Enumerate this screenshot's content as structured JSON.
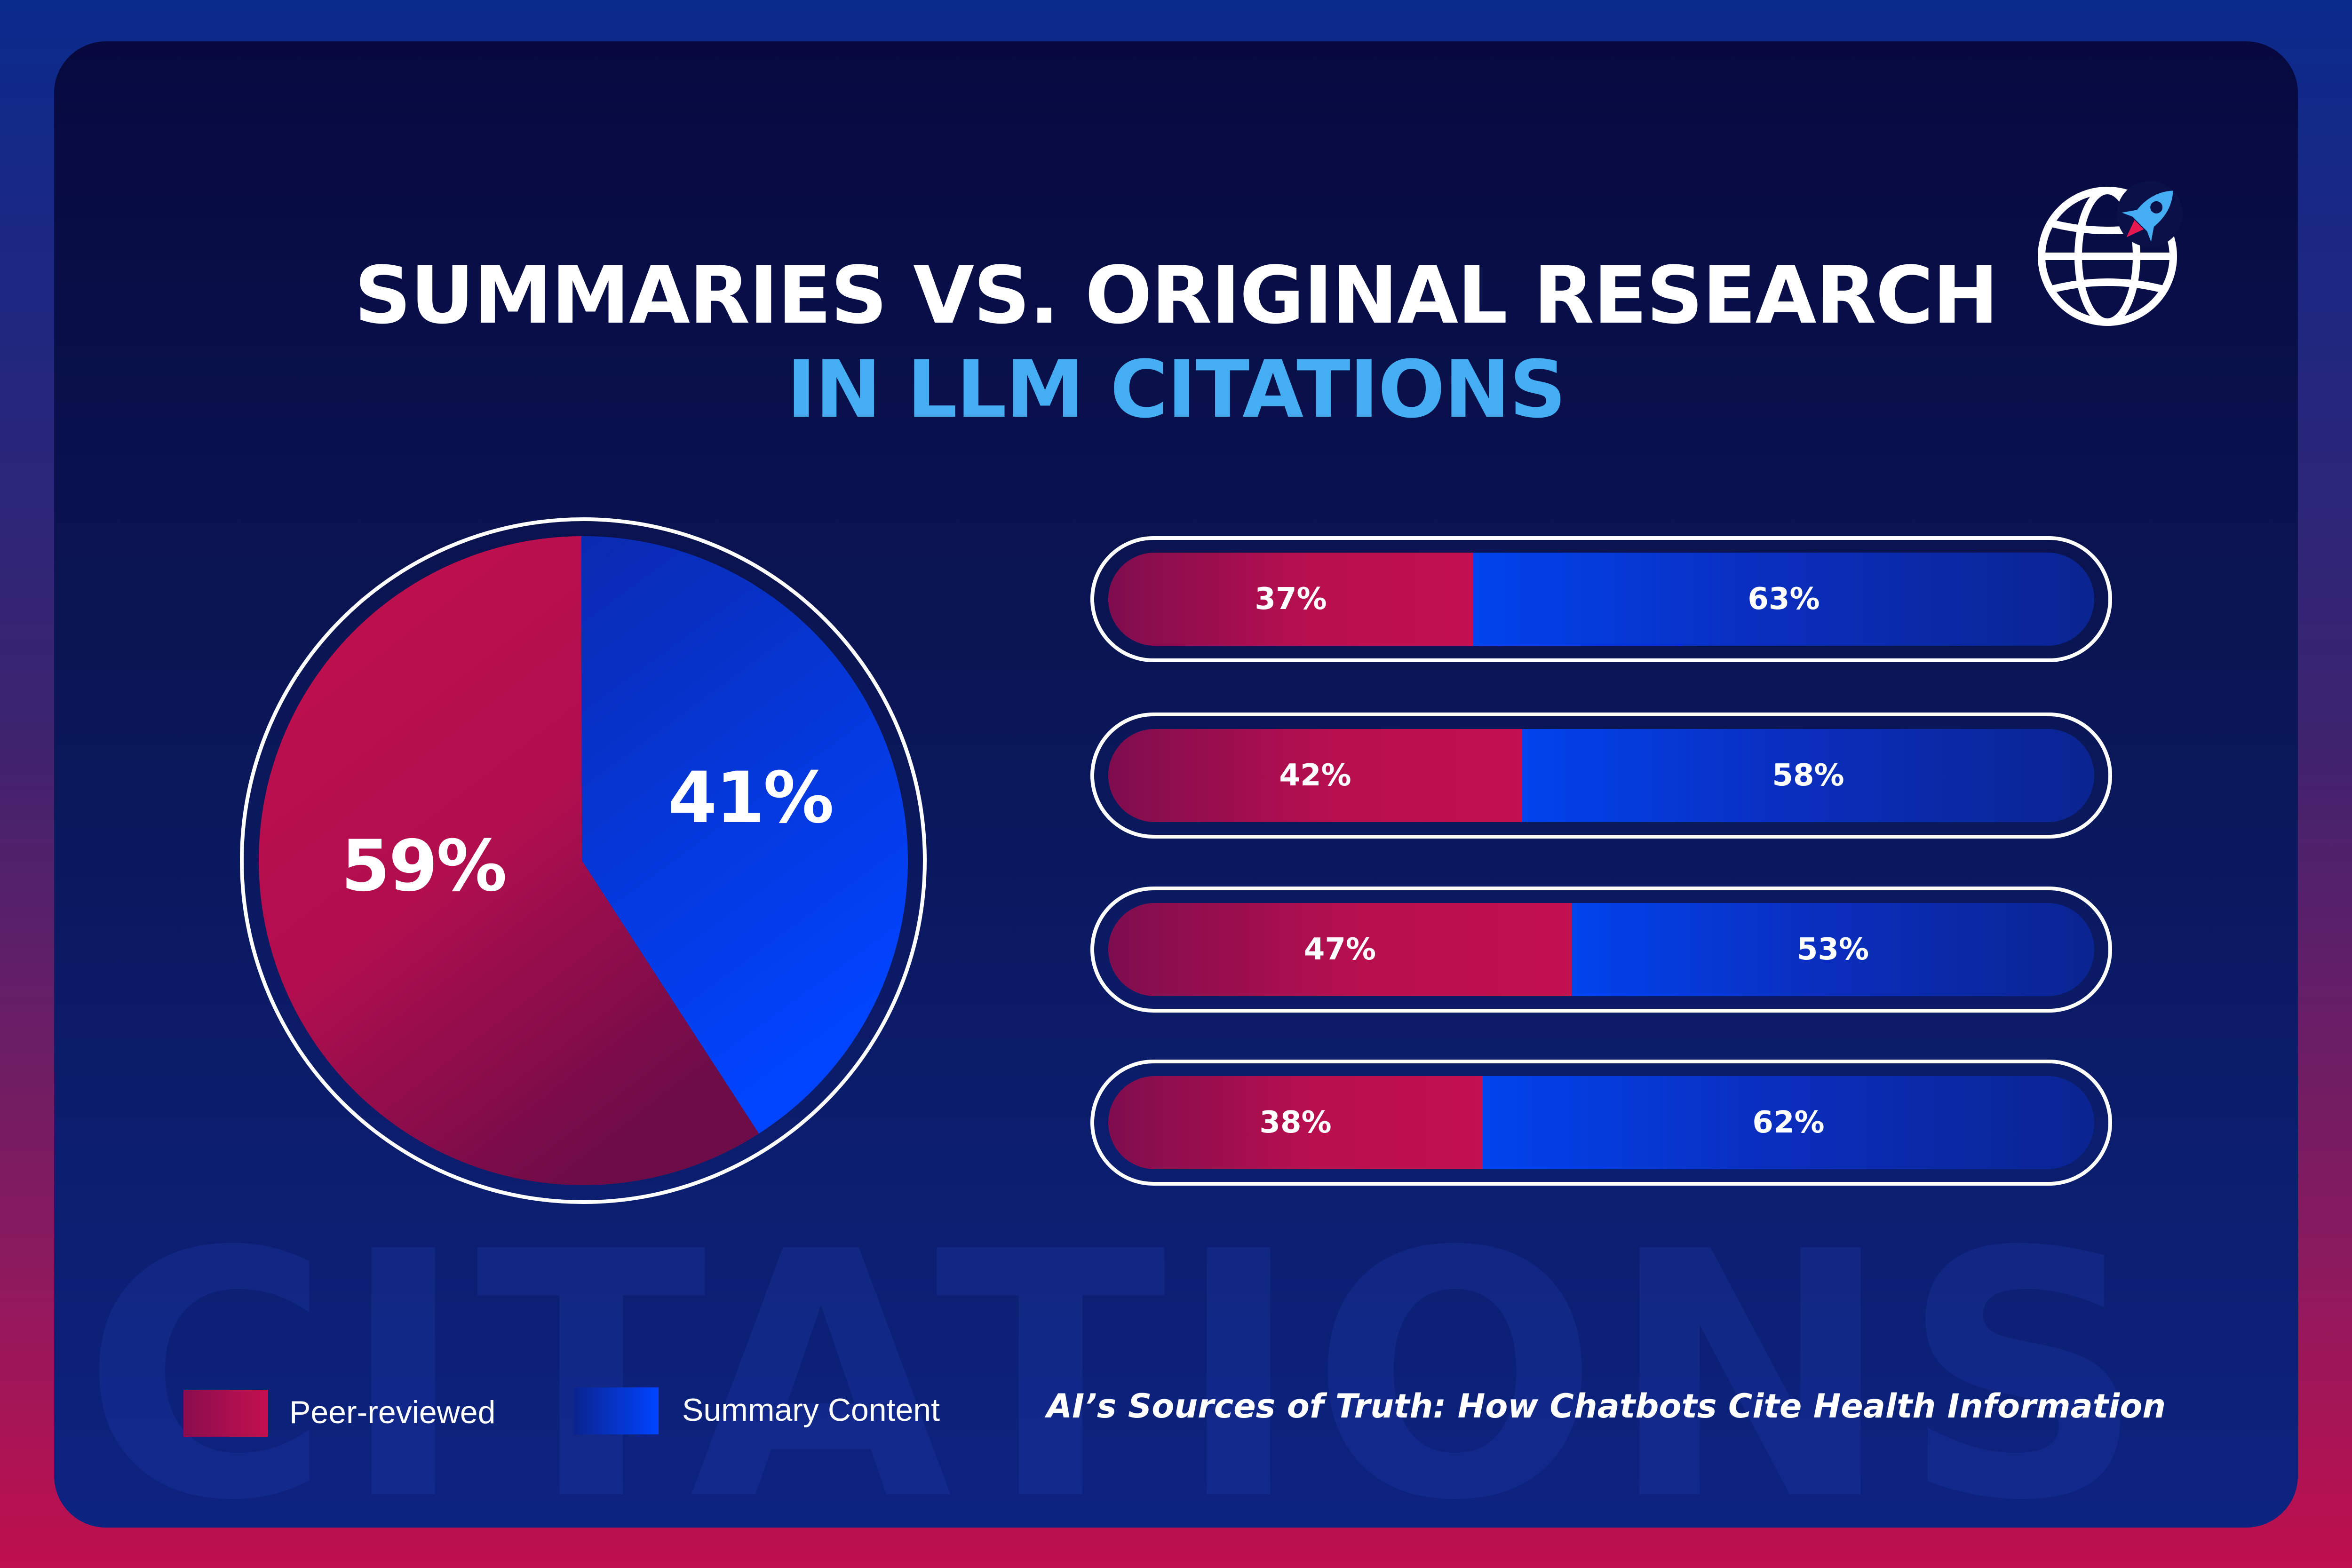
{
  "title": {
    "line1": "SUMMARIES VS. ORIGINAL RESEARCH",
    "line2": "IN LLM CITATIONS"
  },
  "logo": {
    "icon": "globe-rocket-icon"
  },
  "colors": {
    "peer_reviewed": "#b80f4f",
    "summary": "#0040e6",
    "title_accent": "#45aef2"
  },
  "chart_data": [
    {
      "type": "pie",
      "slices": [
        {
          "label": "Summary Content",
          "value": 41,
          "display": "41%"
        },
        {
          "label": "Peer-reviewed",
          "value": 59,
          "display": "59%"
        }
      ]
    },
    {
      "type": "bar",
      "stacked": true,
      "orientation": "horizontal",
      "series": [
        {
          "name": "Peer-reviewed",
          "values": [
            37,
            42,
            47,
            38
          ]
        },
        {
          "name": "Summary Content",
          "values": [
            63,
            58,
            53,
            62
          ]
        }
      ],
      "labels": [
        [
          "37%",
          "63%"
        ],
        [
          "42%",
          "58%"
        ],
        [
          "47%",
          "53%"
        ],
        [
          "38%",
          "62%"
        ]
      ]
    }
  ],
  "legend": [
    {
      "label": "Peer-reviewed",
      "color": "#b80f4f"
    },
    {
      "label": "Summary Content",
      "color": "#0040e6"
    }
  ],
  "watermark": "CITATIONS",
  "source": "AI’s Sources of Truth: How Chatbots Cite Health Information"
}
